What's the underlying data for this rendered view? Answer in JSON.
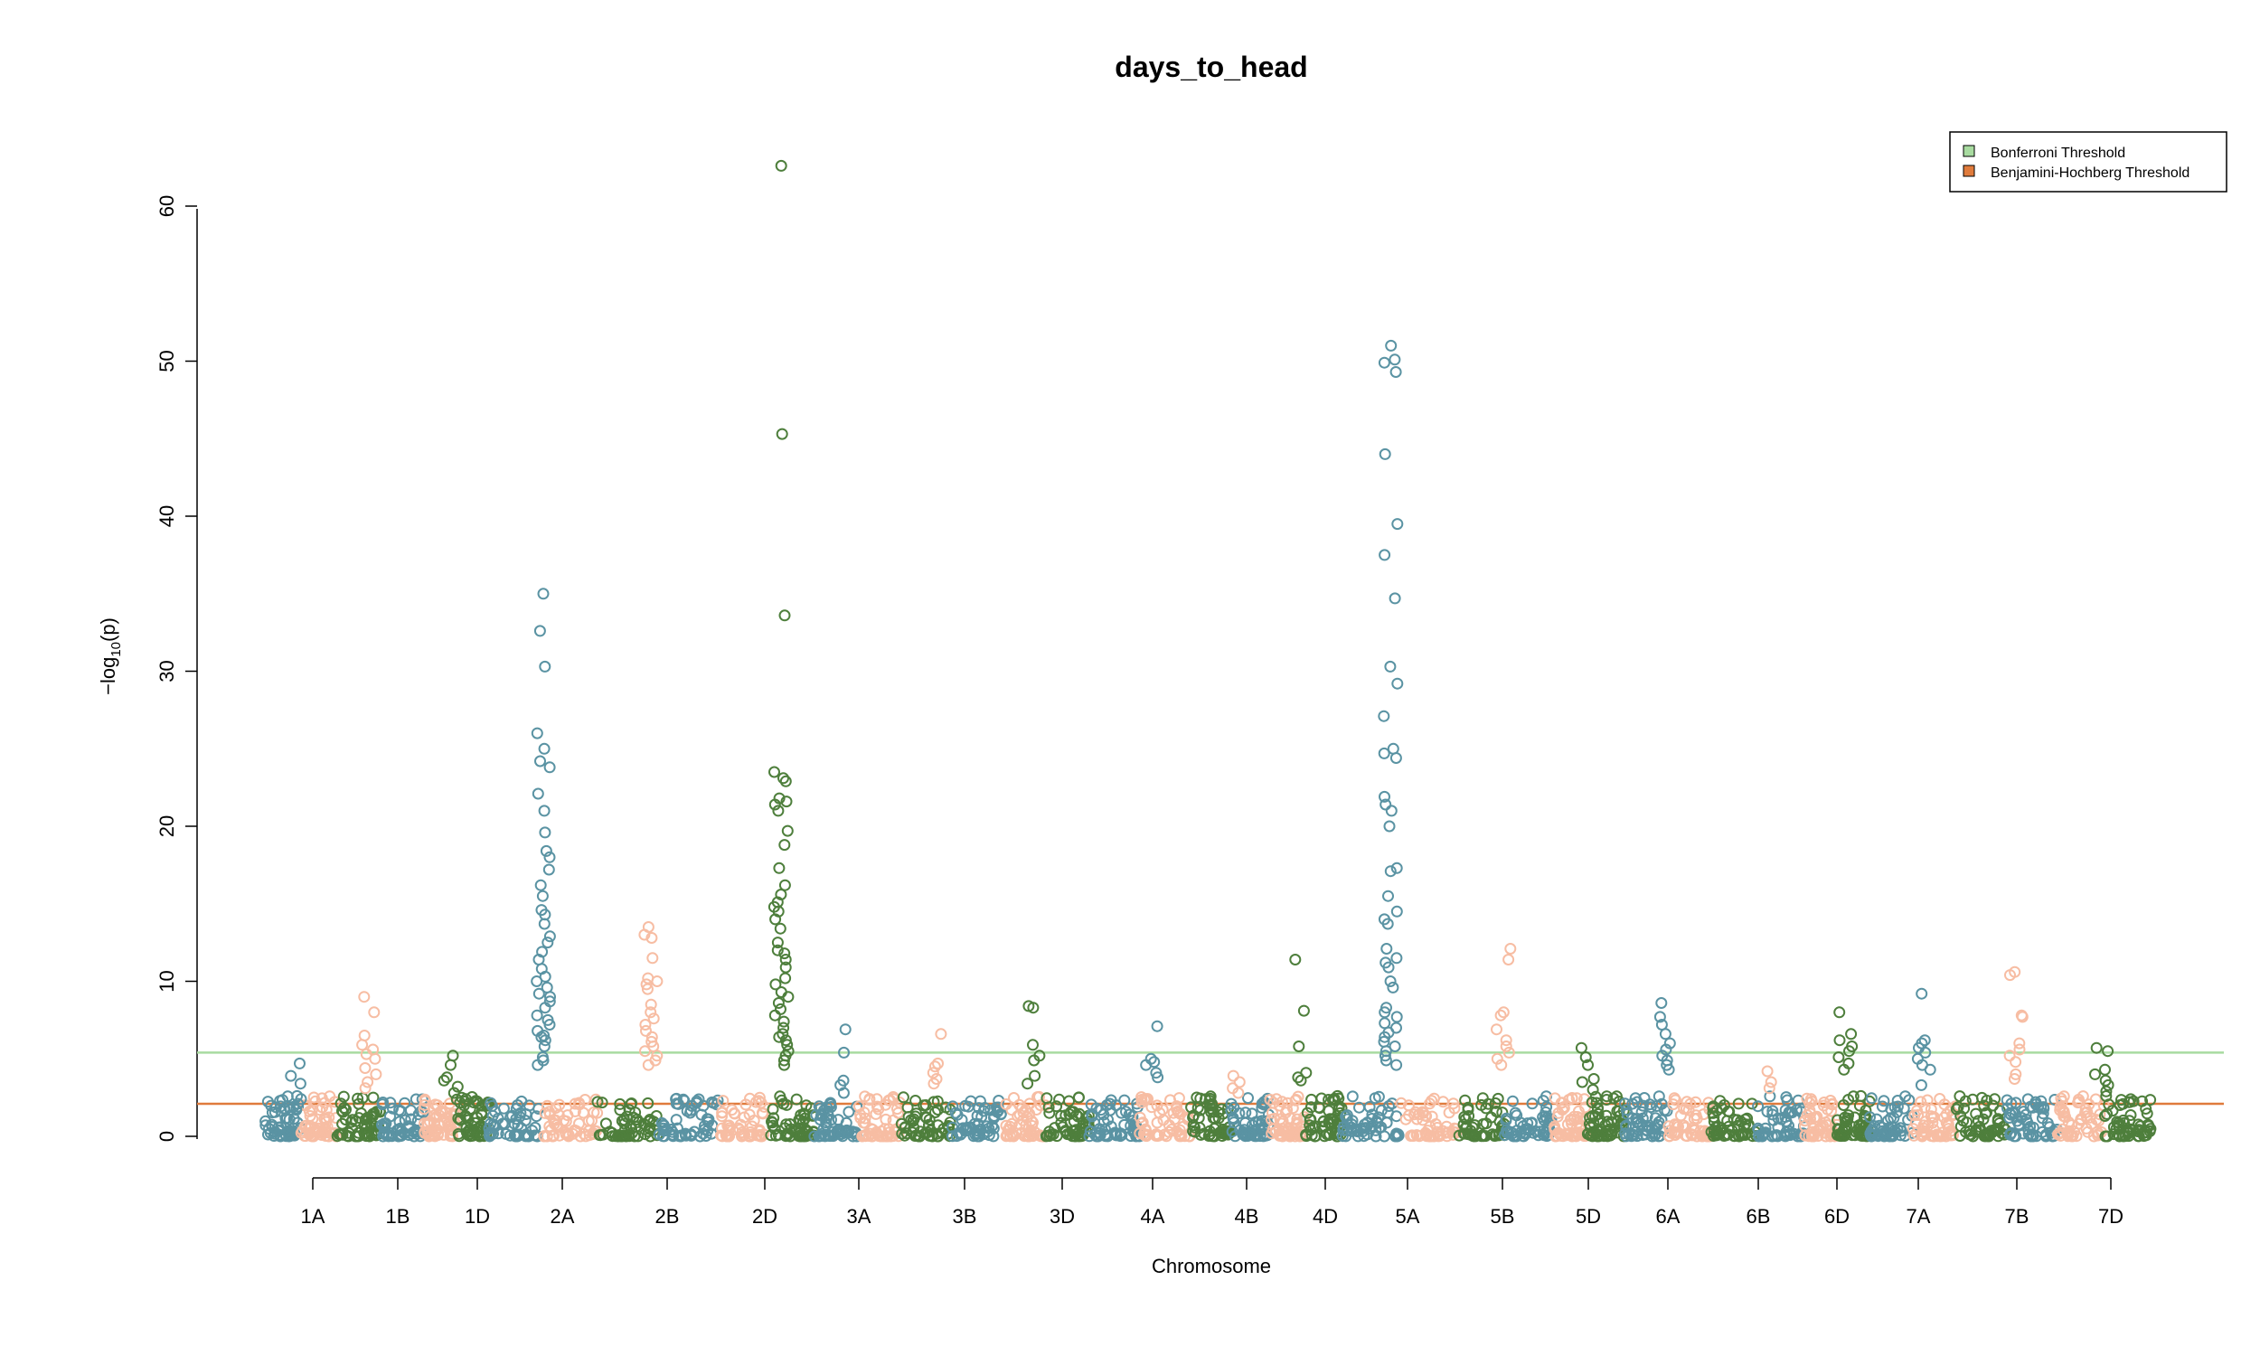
{
  "chart_data": {
    "type": "scatter",
    "title": "days_to_head",
    "xlabel": "Chromosome",
    "ylabel": "-log10(p)",
    "ylabel_main": "−log",
    "ylabel_sub": "10",
    "ylabel_tail": "(p)",
    "ylim": [
      0,
      63
    ],
    "yticks": [
      0,
      10,
      20,
      30,
      40,
      50,
      60
    ],
    "grid": false,
    "legend_position": "top-right",
    "chromosomes": [
      "1A",
      "1B",
      "1D",
      "2A",
      "2B",
      "2D",
      "3A",
      "3B",
      "3D",
      "4A",
      "4B",
      "4D",
      "5A",
      "5B",
      "5D",
      "6A",
      "6B",
      "6D",
      "7A",
      "7B",
      "7D"
    ],
    "colors": [
      "#5a93a3",
      "#f7bda3",
      "#4e7f3c"
    ],
    "thresholds": [
      {
        "name": "Bonferroni Threshold",
        "value": 5.4,
        "color": "#a8dba0"
      },
      {
        "name": "Benjamini-Hochberg Threshold",
        "value": 2.1,
        "color": "#e07b3c"
      }
    ],
    "series": [
      {
        "chrom": "1A",
        "max": 4.7,
        "peaks": [
          4.7,
          3.9,
          3.4,
          2.6,
          2.4,
          2.1,
          1.9,
          1.7
        ]
      },
      {
        "chrom": "1B",
        "max": 9.0,
        "peaks": [
          9.0,
          8.0,
          6.5,
          5.9,
          5.6,
          5.3,
          5.0,
          4.4,
          4.0,
          3.5,
          3.1
        ]
      },
      {
        "chrom": "1D",
        "max": 5.2,
        "peaks": [
          5.2,
          4.6,
          3.8,
          3.6,
          3.2,
          2.8
        ]
      },
      {
        "chrom": "2A",
        "max": 35.0,
        "peaks": [
          35.0,
          32.6,
          30.3,
          26.0,
          25.0,
          24.2,
          23.8,
          22.1,
          21.0,
          19.6,
          18.4,
          18.0,
          17.2,
          16.2,
          15.5,
          14.6,
          14.3,
          13.7,
          12.9,
          12.5,
          11.9,
          11.4,
          10.8,
          10.3,
          10.0,
          9.6,
          9.2,
          9.0,
          8.7,
          8.3,
          7.8,
          7.5,
          7.2,
          6.8,
          6.5,
          6.2,
          5.8,
          6.4,
          5.1,
          4.9,
          4.6
        ]
      },
      {
        "chrom": "2B",
        "max": 13.5,
        "peaks": [
          13.5,
          13.0,
          12.8,
          11.5,
          10.2,
          10.0,
          9.8,
          9.5,
          8.5,
          8.0,
          7.6,
          7.2,
          6.8,
          6.4,
          6.1,
          5.8,
          5.5,
          5.2,
          4.9,
          4.6
        ]
      },
      {
        "chrom": "2D",
        "max": 62.6,
        "peaks": [
          62.6,
          45.3,
          33.6,
          23.5,
          23.1,
          22.9,
          21.8,
          21.6,
          21.4,
          21.0,
          19.7,
          18.8,
          17.3,
          16.2,
          15.6,
          15.1,
          14.8,
          14.5,
          14.0,
          13.4,
          12.5,
          12.0,
          11.8,
          11.4,
          10.9,
          10.2,
          9.8,
          9.3,
          9.0,
          8.6,
          8.2,
          7.8,
          7.4,
          7.0,
          6.6,
          6.4,
          6.2,
          5.9,
          5.5,
          5.2,
          4.9,
          4.6
        ]
      },
      {
        "chrom": "3A",
        "max": 6.9,
        "peaks": [
          6.9,
          5.4,
          3.6,
          3.3,
          2.8
        ]
      },
      {
        "chrom": "3B",
        "max": 6.6,
        "peaks": [
          6.6,
          4.7,
          4.5,
          4.1,
          3.7,
          3.4
        ]
      },
      {
        "chrom": "3D",
        "max": 8.4,
        "peaks": [
          8.4,
          8.3,
          5.9,
          5.2,
          4.9,
          3.9,
          3.4
        ]
      },
      {
        "chrom": "4A",
        "max": 7.1,
        "peaks": [
          7.1,
          5.0,
          4.8,
          4.6,
          4.1,
          3.8
        ]
      },
      {
        "chrom": "4B",
        "max": 3.9,
        "peaks": [
          3.9,
          3.5,
          3.1,
          2.8
        ]
      },
      {
        "chrom": "4D",
        "max": 11.4,
        "peaks": [
          11.4,
          8.1,
          5.8,
          4.1,
          3.8,
          3.6
        ]
      },
      {
        "chrom": "5A",
        "max": 51.0,
        "peaks": [
          51.0,
          50.1,
          49.9,
          49.3,
          44.0,
          39.5,
          37.5,
          34.7,
          30.3,
          29.2,
          27.1,
          25.0,
          24.7,
          24.4,
          21.9,
          21.4,
          21.0,
          20.0,
          17.3,
          17.1,
          15.5,
          14.5,
          14.0,
          13.7,
          12.1,
          11.5,
          11.2,
          10.9,
          10.0,
          9.6,
          8.3,
          8.0,
          7.7,
          7.3,
          7.0,
          6.7,
          6.4,
          6.1,
          5.8,
          5.5,
          5.2,
          4.9,
          4.6
        ]
      },
      {
        "chrom": "5B",
        "max": 12.1,
        "peaks": [
          12.1,
          11.4,
          8.0,
          7.8,
          6.9,
          6.2,
          5.8,
          5.4,
          5.0,
          4.6
        ]
      },
      {
        "chrom": "5D",
        "max": 5.7,
        "peaks": [
          5.7,
          5.1,
          4.6,
          3.7,
          3.5,
          3.0
        ]
      },
      {
        "chrom": "6A",
        "max": 8.6,
        "peaks": [
          8.6,
          7.7,
          7.2,
          6.6,
          6.0,
          5.6,
          5.2,
          4.9,
          4.6,
          4.3
        ]
      },
      {
        "chrom": "6B",
        "max": 4.2,
        "peaks": [
          4.2,
          3.5,
          3.1
        ]
      },
      {
        "chrom": "6D",
        "max": 8.0,
        "peaks": [
          8.0,
          6.6,
          6.2,
          5.8,
          5.5,
          5.1,
          4.7,
          4.3
        ]
      },
      {
        "chrom": "7A",
        "max": 9.2,
        "peaks": [
          9.2,
          6.2,
          6.0,
          5.7,
          5.4,
          5.0,
          4.6,
          4.3,
          3.3
        ]
      },
      {
        "chrom": "7B",
        "max": 10.6,
        "peaks": [
          10.6,
          10.4,
          7.8,
          7.7,
          6.0,
          5.6,
          5.2,
          4.8,
          4.0,
          3.7
        ]
      },
      {
        "chrom": "7D",
        "max": 5.7,
        "peaks": [
          5.7,
          5.5,
          4.3,
          4.0,
          3.6,
          3.3,
          2.9
        ]
      }
    ]
  }
}
